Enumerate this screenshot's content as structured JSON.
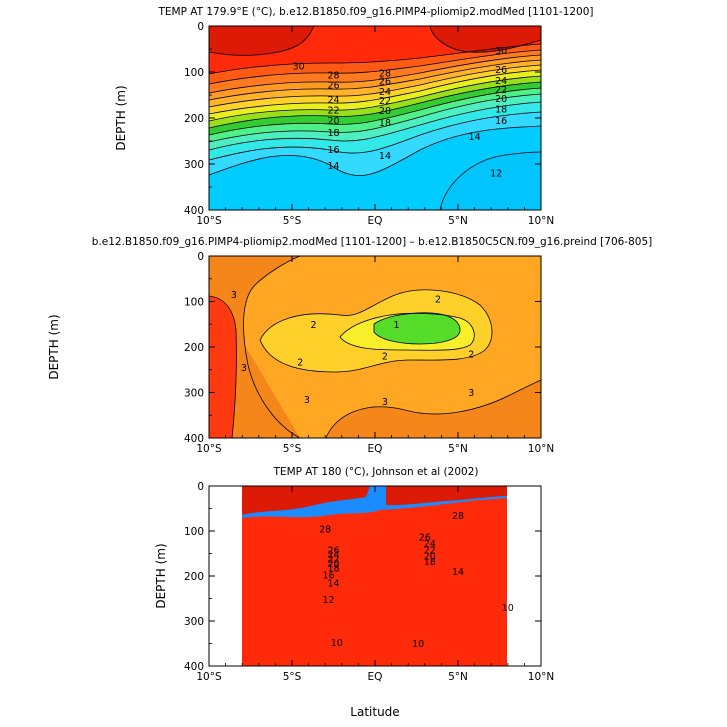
{
  "figure": {
    "x_axis_label": "Latitude",
    "y_axis_label": "DEPTH (m)"
  },
  "chart_data": [
    {
      "type": "contour",
      "title": "TEMP AT 179.9°E (°C), b.e12.B1850.f09_g16.PIMP4-pliomip2.modMed [1101-1200]",
      "xlabel": "",
      "ylabel": "DEPTH (m)",
      "x_tick_labels": [
        "10°S",
        "5°S",
        "EQ",
        "5°N",
        "10°N"
      ],
      "x_tick_values": [
        -10,
        -5,
        0,
        5,
        10
      ],
      "y_tick_labels": [
        "0",
        "100",
        "200",
        "300",
        "400"
      ],
      "y_tick_values": [
        0,
        100,
        200,
        300,
        400
      ],
      "xlim": [
        -10,
        10
      ],
      "ylim": [
        400,
        0
      ],
      "contour_levels_degC": [
        12,
        13,
        14,
        15,
        16,
        17,
        18,
        19,
        20,
        21,
        22,
        23,
        24,
        25,
        26,
        27,
        28,
        29,
        30
      ],
      "labeled_contours": [
        {
          "text": "30",
          "lon": -4.6,
          "depth": 87
        },
        {
          "text": "30",
          "lon": 7.6,
          "depth": 53
        },
        {
          "text": "28",
          "lon": -2.5,
          "depth": 106
        },
        {
          "text": "28",
          "lon": 0.6,
          "depth": 102
        },
        {
          "text": "26",
          "lon": -2.5,
          "depth": 128
        },
        {
          "text": "26",
          "lon": 0.6,
          "depth": 120
        },
        {
          "text": "26",
          "lon": 7.6,
          "depth": 95
        },
        {
          "text": "24",
          "lon": -2.5,
          "depth": 160
        },
        {
          "text": "24",
          "lon": 0.6,
          "depth": 142
        },
        {
          "text": "24",
          "lon": 7.6,
          "depth": 118
        },
        {
          "text": "22",
          "lon": -2.5,
          "depth": 183
        },
        {
          "text": "22",
          "lon": 0.6,
          "depth": 162
        },
        {
          "text": "22",
          "lon": 7.6,
          "depth": 138
        },
        {
          "text": "20",
          "lon": -2.5,
          "depth": 205
        },
        {
          "text": "20",
          "lon": 0.6,
          "depth": 184
        },
        {
          "text": "20",
          "lon": 7.6,
          "depth": 158
        },
        {
          "text": "18",
          "lon": -2.5,
          "depth": 232
        },
        {
          "text": "18",
          "lon": 0.6,
          "depth": 210
        },
        {
          "text": "18",
          "lon": 7.6,
          "depth": 180
        },
        {
          "text": "16",
          "lon": -2.5,
          "depth": 268
        },
        {
          "text": "16",
          "lon": 7.6,
          "depth": 205
        },
        {
          "text": "14",
          "lon": -2.5,
          "depth": 303
        },
        {
          "text": "14",
          "lon": 0.6,
          "depth": 282
        },
        {
          "text": "14",
          "lon": 6.0,
          "depth": 240
        },
        {
          "text": "12",
          "lon": 7.3,
          "depth": 320
        }
      ]
    },
    {
      "type": "contour",
      "title": "b.e12.B1850.f09_g16.PIMP4-pliomip2.modMed [1101-1200] – b.e12.B1850C5CN.f09_g16.preind [706-805]",
      "xlabel": "",
      "ylabel": "DEPTH (m)",
      "x_tick_labels": [
        "10°S",
        "5°S",
        "EQ",
        "5°N",
        "10°N"
      ],
      "x_tick_values": [
        -10,
        -5,
        0,
        5,
        10
      ],
      "y_tick_labels": [
        "0",
        "100",
        "200",
        "300",
        "400"
      ],
      "y_tick_values": [
        0,
        100,
        200,
        300,
        400
      ],
      "xlim": [
        -10,
        10
      ],
      "ylim": [
        400,
        0
      ],
      "contour_levels_degC": [
        1,
        1.5,
        2,
        2.5,
        3,
        3.5
      ],
      "labeled_contours": [
        {
          "text": "3",
          "lon": -8.5,
          "depth": 85
        },
        {
          "text": "3",
          "lon": -7.9,
          "depth": 245
        },
        {
          "text": "3",
          "lon": -4.1,
          "depth": 315
        },
        {
          "text": "3",
          "lon": 0.6,
          "depth": 320
        },
        {
          "text": "3",
          "lon": 5.8,
          "depth": 300
        },
        {
          "text": "2",
          "lon": 3.8,
          "depth": 95
        },
        {
          "text": "2",
          "lon": -3.7,
          "depth": 150
        },
        {
          "text": "2",
          "lon": -4.5,
          "depth": 233
        },
        {
          "text": "2",
          "lon": 0.6,
          "depth": 220
        },
        {
          "text": "2",
          "lon": 5.8,
          "depth": 215
        },
        {
          "text": "1",
          "lon": 1.3,
          "depth": 150
        }
      ]
    },
    {
      "type": "contour",
      "title": "TEMP AT 180 (°C), Johnson et al (2002)",
      "xlabel": "Latitude",
      "ylabel": "DEPTH (m)",
      "x_tick_labels": [
        "10°S",
        "5°S",
        "EQ",
        "5°N",
        "10°N"
      ],
      "x_tick_values": [
        -10,
        -5,
        0,
        5,
        10
      ],
      "y_tick_labels": [
        "0",
        "100",
        "200",
        "300",
        "400"
      ],
      "y_tick_values": [
        0,
        100,
        200,
        300,
        400
      ],
      "xlim": [
        -10,
        10
      ],
      "ylim": [
        400,
        0
      ],
      "data_lat_range": [
        -8,
        8
      ],
      "contour_levels_degC": [
        8,
        9,
        10,
        11,
        12,
        13,
        14,
        15,
        16,
        17,
        18,
        19,
        20,
        21,
        22,
        23,
        24,
        25,
        26,
        27,
        28,
        29
      ],
      "labeled_contours": [
        {
          "text": "28",
          "lon": -3.0,
          "depth": 95
        },
        {
          "text": "28",
          "lon": 5.0,
          "depth": 65
        },
        {
          "text": "26",
          "lon": -2.5,
          "depth": 142
        },
        {
          "text": "26",
          "lon": 3.0,
          "depth": 113
        },
        {
          "text": "24",
          "lon": -2.5,
          "depth": 152
        },
        {
          "text": "24",
          "lon": 3.3,
          "depth": 128
        },
        {
          "text": "22",
          "lon": -2.5,
          "depth": 162
        },
        {
          "text": "22",
          "lon": 3.3,
          "depth": 142
        },
        {
          "text": "20",
          "lon": -2.5,
          "depth": 172
        },
        {
          "text": "20",
          "lon": 3.3,
          "depth": 155
        },
        {
          "text": "18",
          "lon": -2.5,
          "depth": 182
        },
        {
          "text": "18",
          "lon": 3.3,
          "depth": 168
        },
        {
          "text": "16",
          "lon": -2.8,
          "depth": 198
        },
        {
          "text": "14",
          "lon": -2.5,
          "depth": 215
        },
        {
          "text": "14",
          "lon": 5.0,
          "depth": 190
        },
        {
          "text": "12",
          "lon": -2.8,
          "depth": 252
        },
        {
          "text": "10",
          "lon": -2.3,
          "depth": 348
        },
        {
          "text": "10",
          "lon": 2.6,
          "depth": 350
        },
        {
          "text": "10",
          "lon": 8.0,
          "depth": 270
        }
      ]
    }
  ]
}
